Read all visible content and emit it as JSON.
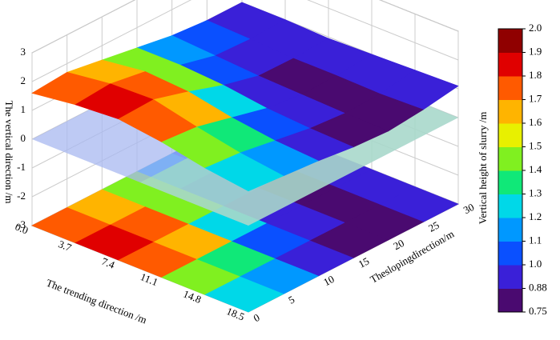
{
  "chart_data": {
    "type": "surface3d",
    "zlabel": "The vertical direction /m",
    "xlabel": "The trending direction /m",
    "ylabel": "Theslopingdirection/m",
    "colorbar_label": "Vertical height of slurry /m",
    "x": [
      0,
      3.7,
      7.4,
      11.1,
      14.8,
      18.5
    ],
    "y": [
      0,
      5,
      10,
      15,
      20,
      25,
      30
    ],
    "values": [
      [
        1.6,
        1.7,
        1.5,
        1.3,
        1.1,
        1.0,
        1.0
      ],
      [
        1.8,
        1.9,
        1.7,
        1.3,
        1.0,
        0.95,
        1.0
      ],
      [
        1.9,
        1.95,
        1.6,
        1.2,
        0.9,
        0.88,
        0.95
      ],
      [
        1.7,
        1.6,
        1.3,
        1.0,
        0.85,
        0.88,
        1.0
      ],
      [
        1.4,
        1.3,
        1.1,
        0.9,
        0.8,
        0.85,
        1.05
      ],
      [
        1.2,
        1.1,
        1.0,
        0.85,
        0.78,
        0.9,
        1.1
      ]
    ],
    "xlim": [
      0,
      18.5
    ],
    "xticks": [
      {
        "value": 0,
        "label": "0.0"
      },
      3.7,
      7.4,
      11.1,
      14.8,
      18.5
    ],
    "ylim": [
      0,
      30
    ],
    "yticks": [
      0,
      5,
      10,
      15,
      20,
      25,
      30
    ],
    "zlim": [
      -3,
      3
    ],
    "zticks": [
      -3,
      -2,
      -1,
      0,
      1,
      2,
      3
    ],
    "colorbar_ticks": [
      0.75,
      0.88,
      {
        "value": 1,
        "label": "1.0"
      },
      1.1,
      1.2,
      1.3,
      1.4,
      1.5,
      1.6,
      1.7,
      1.8,
      1.9,
      {
        "value": 2,
        "label": "2.0"
      }
    ],
    "colormap": [
      "#4a0a70",
      "#3a20d8",
      "#0a50ff",
      "#0098ff",
      "#00d8e8",
      "#10e878",
      "#80f020",
      "#e8f000",
      "#ffb400",
      "#ff5a00",
      "#e00000",
      "#900000"
    ],
    "grid": true
  }
}
